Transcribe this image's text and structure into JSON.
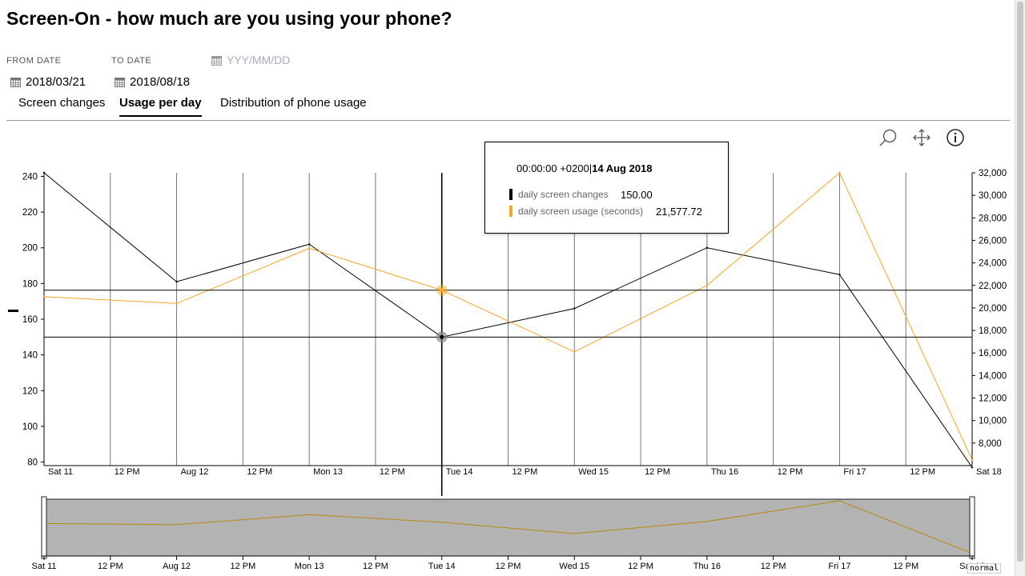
{
  "page": {
    "title": "Screen-On - how much are you using your phone?"
  },
  "filters": {
    "from_label": "FROM DATE",
    "to_label": "TO DATE",
    "date_placeholder": "YYY/MM/DD",
    "from_value": "2018/03/21",
    "to_value": "2018/08/18"
  },
  "tabs": [
    {
      "label": "Screen changes",
      "active": false
    },
    {
      "label": "Usage per day",
      "active": true
    },
    {
      "label": "Distribution of phone usage",
      "active": false
    }
  ],
  "toolbar": {
    "zoom_icon": "magnifier-icon",
    "pan_icon": "move-arrows-icon",
    "info_icon": "info-icon"
  },
  "tooltip": {
    "time": "00:00:00 +0200",
    "date": "14 Aug 2018",
    "rows": [
      {
        "label": "daily screen changes",
        "value": "150.00",
        "color": "#000000"
      },
      {
        "label": "daily screen usage (seconds)",
        "value": "21,577.72",
        "color": "#f5a623"
      }
    ]
  },
  "chart_data": {
    "type": "line",
    "x": [
      "Sat 11",
      "Aug 12",
      "Mon 13",
      "Tue 14",
      "Wed 15",
      "Thu 16",
      "Fri 17",
      "Sat 18"
    ],
    "x_tick_labels": [
      "Sat 11",
      "12 PM",
      "Aug 12",
      "12 PM",
      "Mon 13",
      "12 PM",
      "Tue 14",
      "12 PM",
      "Wed 15",
      "12 PM",
      "Thu 16",
      "12 PM",
      "Fri 17",
      "12 PM",
      "Sat 18"
    ],
    "series": [
      {
        "name": "daily screen changes",
        "axis": "left",
        "color": "#000000",
        "values": [
          242,
          181,
          202,
          150,
          166,
          200,
          185,
          77
        ]
      },
      {
        "name": "daily screen usage (seconds)",
        "axis": "right",
        "color": "#f5a623",
        "values": [
          21000,
          20400,
          25300,
          21577.72,
          16100,
          22000,
          32000,
          6500
        ]
      }
    ],
    "y_left": {
      "range": [
        78,
        242
      ],
      "ticks": [
        80,
        100,
        120,
        140,
        160,
        180,
        200,
        220,
        240
      ]
    },
    "y_right": {
      "range": [
        6000,
        32000
      ],
      "ticks": [
        8000,
        10000,
        12000,
        14000,
        16000,
        18000,
        20000,
        22000,
        24000,
        26000,
        28000,
        30000,
        32000
      ],
      "tick_labels": [
        "8,000",
        "10,000",
        "12,000",
        "14,000",
        "16,000",
        "18,000",
        "20,000",
        "22,000",
        "24,000",
        "26,000",
        "28,000",
        "30,000",
        "32,000"
      ]
    },
    "crosshair_index": 3,
    "grid": true
  },
  "navigator": {
    "tick_labels": [
      "Sat 11",
      "12 PM",
      "Aug 12",
      "12 PM",
      "Mon 13",
      "12 PM",
      "Tue 14",
      "12 PM",
      "Wed 15",
      "12 PM",
      "Thu 16",
      "12 PM",
      "Fri 17",
      "12 PM",
      "Sat 18"
    ],
    "series_values": [
      21000,
      20400,
      25300,
      21577.72,
      16100,
      22000,
      32000,
      6500
    ]
  },
  "status": {
    "mode": "normal"
  }
}
